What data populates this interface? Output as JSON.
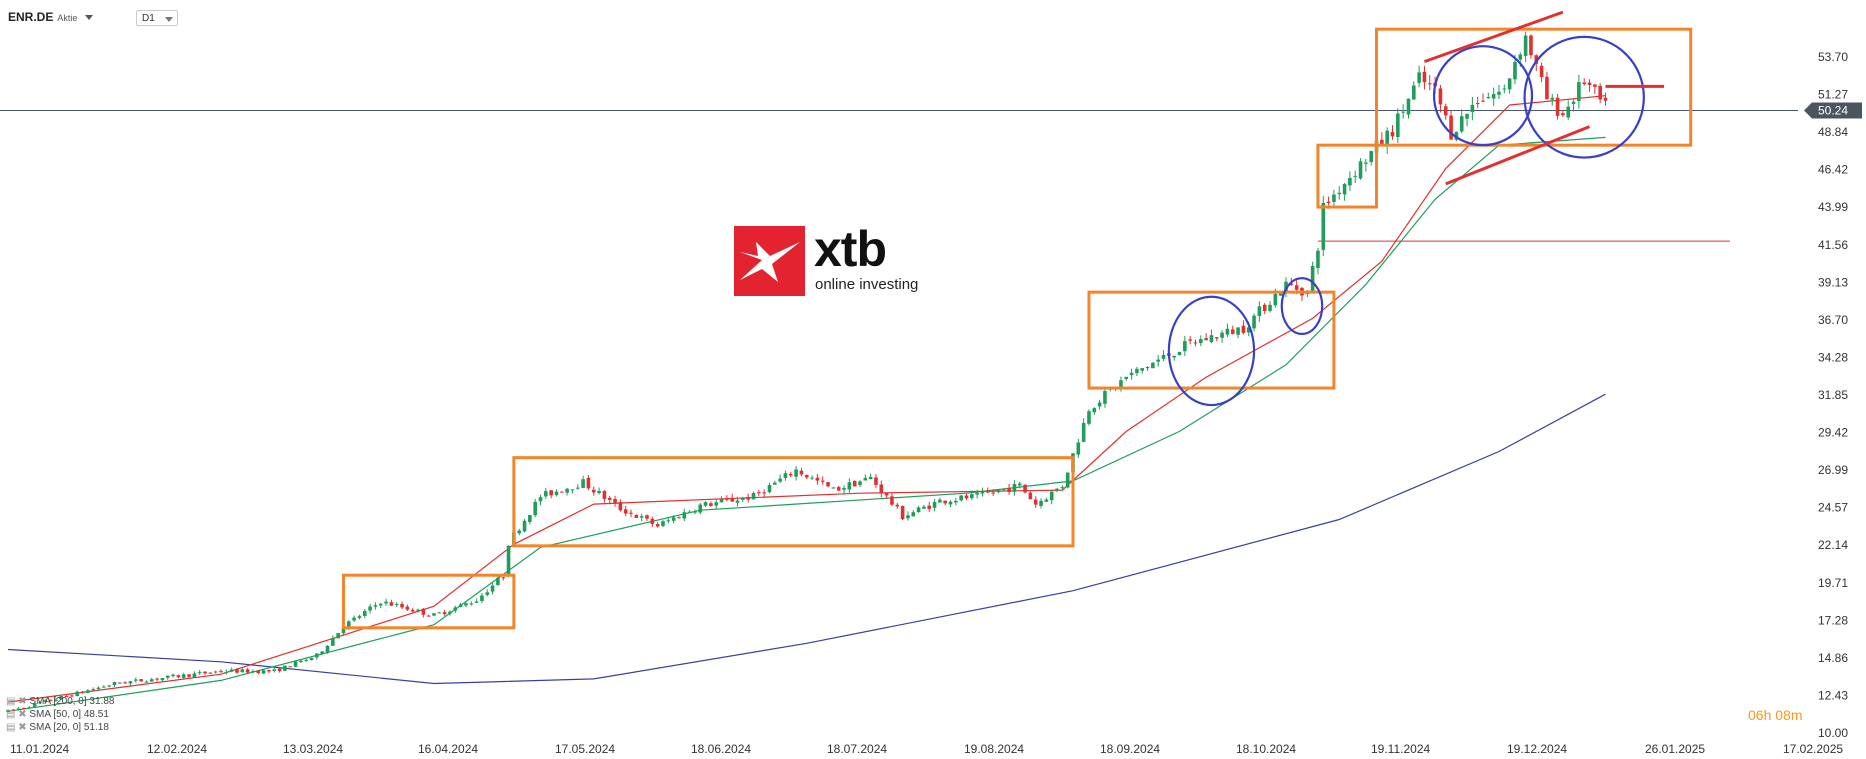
{
  "header": {
    "symbol": "ENR.DE",
    "symbol_type": "Aktie",
    "timeframe": "D1"
  },
  "logo": {
    "brand": "xtb",
    "tagline": "online investing"
  },
  "countdown": "06h 08m",
  "indicators": [
    {
      "label": "SMA [200, 0] 31.88",
      "color": "#3b3f9e"
    },
    {
      "label": "SMA [50, 0] 48.51",
      "color": "#1e9e5a"
    },
    {
      "label": "SMA [20, 0] 51.18",
      "color": "#e03030"
    }
  ],
  "current_price": "50.24",
  "colors": {
    "up": "#1e9e5a",
    "down": "#e03030",
    "sma200": "#3b3f9e",
    "sma50": "#1e9e5a",
    "sma20": "#e03030",
    "boxes": "#f4842a",
    "circles": "#3a3fc8",
    "price_line": "#4a5a6a",
    "price_tag": "#4a5560"
  },
  "chart_data": {
    "type": "candlestick",
    "y_ticks": [
      "53.70",
      "51.27",
      "48.84",
      "46.42",
      "43.99",
      "41.56",
      "39.13",
      "36.70",
      "34.28",
      "31.85",
      "29.42",
      "26.99",
      "24.57",
      "22.14",
      "19.71",
      "17.28",
      "14.86",
      "12.43",
      "10.00"
    ],
    "x_ticks": [
      "11.01.2024",
      "12.02.2024",
      "13.03.2024",
      "16.04.2024",
      "17.05.2024",
      "18.06.2024",
      "18.07.2024",
      "19.08.2024",
      "18.09.2024",
      "18.10.2024",
      "19.11.2024",
      "19.12.2024",
      "26.01.2025",
      "17.02.2025"
    ],
    "ylim": [
      10.0,
      56.0
    ],
    "horizontal_levels": [
      50.24,
      41.8
    ],
    "sma200": [
      [
        0,
        15.4
      ],
      [
        40,
        14.6
      ],
      [
        80,
        13.2
      ],
      [
        110,
        13.5
      ],
      [
        150,
        15.8
      ],
      [
        200,
        19.2
      ],
      [
        250,
        23.8
      ],
      [
        280,
        28.2
      ],
      [
        300,
        31.9
      ]
    ],
    "sma50": [
      [
        0,
        11.4
      ],
      [
        40,
        13.4
      ],
      [
        80,
        17.0
      ],
      [
        100,
        22.0
      ],
      [
        130,
        24.4
      ],
      [
        180,
        25.5
      ],
      [
        200,
        26.3
      ],
      [
        220,
        29.5
      ],
      [
        240,
        33.8
      ],
      [
        255,
        39.0
      ],
      [
        268,
        44.5
      ],
      [
        280,
        48.0
      ],
      [
        300,
        48.5
      ]
    ],
    "sma20": [
      [
        0,
        12.0
      ],
      [
        40,
        13.8
      ],
      [
        80,
        18.2
      ],
      [
        95,
        22.2
      ],
      [
        110,
        24.8
      ],
      [
        160,
        25.5
      ],
      [
        198,
        25.7
      ],
      [
        210,
        29.5
      ],
      [
        225,
        33.0
      ],
      [
        245,
        36.8
      ],
      [
        258,
        40.5
      ],
      [
        270,
        46.5
      ],
      [
        282,
        50.6
      ],
      [
        300,
        51.2
      ]
    ],
    "annotations": {
      "boxes": [
        [
          63,
          95,
          16.8,
          20.2
        ],
        [
          95,
          200,
          22.1,
          27.8
        ],
        [
          203,
          249,
          32.3,
          38.5
        ],
        [
          246,
          257,
          44.0,
          48.0
        ],
        [
          257,
          316,
          48.0,
          55.5
        ]
      ],
      "circles": [
        [
          226,
          34.7,
          8,
          3.5
        ],
        [
          243,
          37.6,
          3.8,
          1.8
        ],
        [
          277,
          51.2,
          9.2,
          3.2
        ],
        [
          296,
          51.1,
          11.2,
          3.9
        ]
      ],
      "channel": [
        [
          266,
          53.4,
          292,
          56.6
        ],
        [
          270,
          45.5,
          297,
          49.2
        ],
        [
          300,
          51.8,
          311,
          51.8
        ]
      ]
    },
    "waypoints": [
      [
        0,
        11.4
      ],
      [
        20,
        13.2
      ],
      [
        40,
        14.0
      ],
      [
        50,
        14.0
      ],
      [
        58,
        15.0
      ],
      [
        63,
        16.9
      ],
      [
        70,
        18.5
      ],
      [
        80,
        17.6
      ],
      [
        88,
        18.6
      ],
      [
        93,
        20.2
      ],
      [
        94,
        22.3
      ],
      [
        100,
        25.3
      ],
      [
        108,
        26.2
      ],
      [
        115,
        24.5
      ],
      [
        122,
        23.4
      ],
      [
        130,
        24.7
      ],
      [
        140,
        25.3
      ],
      [
        148,
        27.0
      ],
      [
        155,
        25.7
      ],
      [
        162,
        26.5
      ],
      [
        168,
        24.0
      ],
      [
        175,
        25.0
      ],
      [
        182,
        25.3
      ],
      [
        190,
        26.0
      ],
      [
        193,
        24.8
      ],
      [
        198,
        26.0
      ],
      [
        203,
        31.0
      ],
      [
        210,
        33.0
      ],
      [
        222,
        35.2
      ],
      [
        232,
        36.2
      ],
      [
        240,
        39.0
      ],
      [
        244,
        38.5
      ],
      [
        246,
        41.5
      ],
      [
        247,
        44.0
      ],
      [
        252,
        46.0
      ],
      [
        256,
        47.5
      ],
      [
        260,
        49.0
      ],
      [
        265,
        52.3
      ],
      [
        268,
        51.5
      ],
      [
        271,
        48.8
      ],
      [
        276,
        51.0
      ],
      [
        281,
        51.5
      ],
      [
        283,
        53.5
      ],
      [
        285,
        55.0
      ],
      [
        289,
        51.0
      ],
      [
        292,
        50.0
      ],
      [
        296,
        52.2
      ],
      [
        300,
        50.4
      ]
    ],
    "jumps": [
      [
        246,
        7.0
      ]
    ],
    "candle_count": 301
  }
}
